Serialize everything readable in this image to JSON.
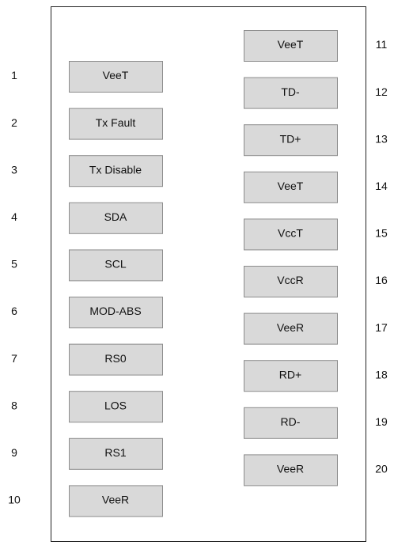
{
  "left_pins": [
    {
      "number": 1,
      "label": "VeeT"
    },
    {
      "number": 2,
      "label": "Tx Fault"
    },
    {
      "number": 3,
      "label": "Tx Disable"
    },
    {
      "number": 4,
      "label": "SDA"
    },
    {
      "number": 5,
      "label": "SCL"
    },
    {
      "number": 6,
      "label": "MOD-ABS"
    },
    {
      "number": 7,
      "label": "RS0"
    },
    {
      "number": 8,
      "label": "LOS"
    },
    {
      "number": 9,
      "label": "RS1"
    },
    {
      "number": 10,
      "label": "VeeR"
    }
  ],
  "right_pins": [
    {
      "number": 11,
      "label": "VeeT"
    },
    {
      "number": 12,
      "label": "TD-"
    },
    {
      "number": 13,
      "label": "TD+"
    },
    {
      "number": 14,
      "label": "VeeT"
    },
    {
      "number": 15,
      "label": "VccT"
    },
    {
      "number": 16,
      "label": "VccR"
    },
    {
      "number": 17,
      "label": "VeeR"
    },
    {
      "number": 18,
      "label": "RD+"
    },
    {
      "number": 19,
      "label": "RD-"
    },
    {
      "number": 20,
      "label": "VeeR"
    }
  ]
}
